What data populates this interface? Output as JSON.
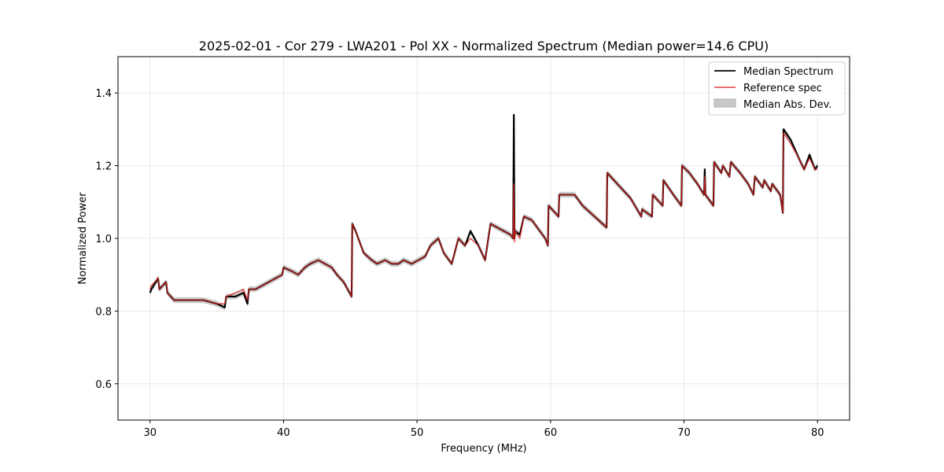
{
  "chart_data": {
    "type": "line",
    "title": "2025-02-01 - Cor 279 - LWA201 - Pol XX - Normalized Spectrum (Median power=14.6 CPU)",
    "xlabel": "Frequency (MHz)",
    "ylabel": "Normalized Power",
    "xlim": [
      27.6,
      82.4
    ],
    "ylim": [
      0.5,
      1.5
    ],
    "xticks": [
      30,
      40,
      50,
      60,
      70,
      80
    ],
    "yticks": [
      0.6,
      0.8,
      1.0,
      1.2,
      1.4
    ],
    "xtick_labels": [
      "30",
      "40",
      "50",
      "60",
      "70",
      "80"
    ],
    "ytick_labels": [
      "0.6",
      "0.8",
      "1.0",
      "1.2",
      "1.4"
    ],
    "grid": true,
    "legend_position": "top-right",
    "legend": {
      "median": "Median Spectrum",
      "reference": "Reference spec",
      "mad": "Median Abs. Dev."
    },
    "colors": {
      "median": "#000000",
      "reference": "#d62020",
      "mad": "#a0a0a0"
    },
    "series": [
      {
        "name": "Median Spectrum",
        "x": [
          30.0,
          30.1,
          30.6,
          30.7,
          31.2,
          31.3,
          31.8,
          32.0,
          32.4,
          33.0,
          34.0,
          35.0,
          35.6,
          35.7,
          36.4,
          37.0,
          37.3,
          37.4,
          37.9,
          38.4,
          38.9,
          39.4,
          39.9,
          40.0,
          40.6,
          41.1,
          41.6,
          42.0,
          42.6,
          43.1,
          43.6,
          44.0,
          44.5,
          45.1,
          45.15,
          45.4,
          46.0,
          46.6,
          47.0,
          47.6,
          48.1,
          48.6,
          49.0,
          49.6,
          50.1,
          50.6,
          51.0,
          51.6,
          52.0,
          52.6,
          53.1,
          53.6,
          54.0,
          54.6,
          55.1,
          55.5,
          56.0,
          56.5,
          57.0,
          57.2,
          57.25,
          57.3,
          57.35,
          57.7,
          58.0,
          58.6,
          59.0,
          59.6,
          59.8,
          59.85,
          60.6,
          60.65,
          61.2,
          61.8,
          62.4,
          63.0,
          63.6,
          64.2,
          64.25,
          65.0,
          66.0,
          66.8,
          66.85,
          67.6,
          67.65,
          68.4,
          68.45,
          69.2,
          69.8,
          69.85,
          70.4,
          71.0,
          71.5,
          71.55,
          71.6,
          72.2,
          72.25,
          72.8,
          72.9,
          73.4,
          73.5,
          74.2,
          74.8,
          75.2,
          75.3,
          75.9,
          76.0,
          76.5,
          76.6,
          77.2,
          77.4,
          77.45,
          78.0,
          78.6,
          79.0,
          79.4,
          79.8,
          80.0
        ],
        "values": [
          0.85,
          0.86,
          0.89,
          0.86,
          0.88,
          0.85,
          0.83,
          0.83,
          0.83,
          0.83,
          0.83,
          0.82,
          0.81,
          0.84,
          0.84,
          0.85,
          0.82,
          0.86,
          0.86,
          0.87,
          0.88,
          0.89,
          0.9,
          0.92,
          0.91,
          0.9,
          0.92,
          0.93,
          0.94,
          0.93,
          0.92,
          0.9,
          0.88,
          0.84,
          1.04,
          1.02,
          0.96,
          0.94,
          0.93,
          0.94,
          0.93,
          0.93,
          0.94,
          0.93,
          0.94,
          0.95,
          0.98,
          1.0,
          0.96,
          0.93,
          1.0,
          0.98,
          1.02,
          0.98,
          0.94,
          1.04,
          1.03,
          1.02,
          1.01,
          1.0,
          1.34,
          1.0,
          1.02,
          1.01,
          1.06,
          1.05,
          1.03,
          1.0,
          0.98,
          1.09,
          1.06,
          1.12,
          1.12,
          1.12,
          1.09,
          1.07,
          1.05,
          1.03,
          1.18,
          1.15,
          1.11,
          1.06,
          1.08,
          1.06,
          1.12,
          1.09,
          1.16,
          1.12,
          1.09,
          1.2,
          1.18,
          1.15,
          1.12,
          1.19,
          1.12,
          1.09,
          1.21,
          1.18,
          1.2,
          1.17,
          1.21,
          1.18,
          1.15,
          1.12,
          1.17,
          1.14,
          1.16,
          1.13,
          1.15,
          1.12,
          1.07,
          1.3,
          1.27,
          1.22,
          1.19,
          1.23,
          1.19,
          1.2
        ]
      },
      {
        "name": "Reference spec",
        "x": [
          30.0,
          30.1,
          30.6,
          30.7,
          31.2,
          31.3,
          31.8,
          32.0,
          32.4,
          33.0,
          34.0,
          35.0,
          35.6,
          35.7,
          36.4,
          37.0,
          37.3,
          37.4,
          37.9,
          38.4,
          38.9,
          39.4,
          39.9,
          40.0,
          40.6,
          41.1,
          41.6,
          42.0,
          42.6,
          43.1,
          43.6,
          44.0,
          44.5,
          45.1,
          45.15,
          45.4,
          46.0,
          46.6,
          47.0,
          47.6,
          48.1,
          48.6,
          49.0,
          49.6,
          50.1,
          50.6,
          51.0,
          51.6,
          52.0,
          52.6,
          53.1,
          53.6,
          54.0,
          54.6,
          55.1,
          55.5,
          56.0,
          56.5,
          57.0,
          57.2,
          57.25,
          57.3,
          57.35,
          57.7,
          58.0,
          58.6,
          59.0,
          59.6,
          59.8,
          59.85,
          60.6,
          60.65,
          61.2,
          61.8,
          62.4,
          63.0,
          63.6,
          64.2,
          64.25,
          65.0,
          66.0,
          66.8,
          66.85,
          67.6,
          67.65,
          68.4,
          68.45,
          69.2,
          69.8,
          69.85,
          70.4,
          71.0,
          71.5,
          71.55,
          71.6,
          72.2,
          72.25,
          72.8,
          72.9,
          73.4,
          73.5,
          74.2,
          74.8,
          75.2,
          75.3,
          75.9,
          76.0,
          76.5,
          76.6,
          77.2,
          77.4,
          77.45,
          78.0,
          78.6,
          79.0,
          79.4,
          79.8,
          80.0
        ],
        "values": [
          0.86,
          0.87,
          0.89,
          0.86,
          0.88,
          0.85,
          0.83,
          0.83,
          0.83,
          0.83,
          0.83,
          0.82,
          0.82,
          0.84,
          0.85,
          0.86,
          0.83,
          0.86,
          0.86,
          0.87,
          0.88,
          0.89,
          0.9,
          0.92,
          0.91,
          0.9,
          0.92,
          0.93,
          0.94,
          0.93,
          0.92,
          0.9,
          0.88,
          0.84,
          1.04,
          1.02,
          0.96,
          0.94,
          0.93,
          0.94,
          0.93,
          0.93,
          0.94,
          0.93,
          0.94,
          0.95,
          0.98,
          1.0,
          0.96,
          0.93,
          1.0,
          0.98,
          1.0,
          0.98,
          0.94,
          1.04,
          1.03,
          1.02,
          1.01,
          1.0,
          1.15,
          0.99,
          1.02,
          1.0,
          1.06,
          1.05,
          1.03,
          1.0,
          0.98,
          1.09,
          1.06,
          1.12,
          1.12,
          1.12,
          1.09,
          1.07,
          1.05,
          1.03,
          1.18,
          1.15,
          1.11,
          1.06,
          1.08,
          1.06,
          1.12,
          1.09,
          1.16,
          1.12,
          1.09,
          1.2,
          1.18,
          1.15,
          1.12,
          1.17,
          1.12,
          1.09,
          1.21,
          1.18,
          1.2,
          1.17,
          1.21,
          1.18,
          1.15,
          1.12,
          1.17,
          1.14,
          1.16,
          1.13,
          1.15,
          1.12,
          1.07,
          1.29,
          1.26,
          1.22,
          1.19,
          1.22,
          1.19,
          1.19
        ]
      }
    ],
    "mad_band": {
      "name": "Median Abs. Dev.",
      "halfwidth": 0.008
    }
  }
}
